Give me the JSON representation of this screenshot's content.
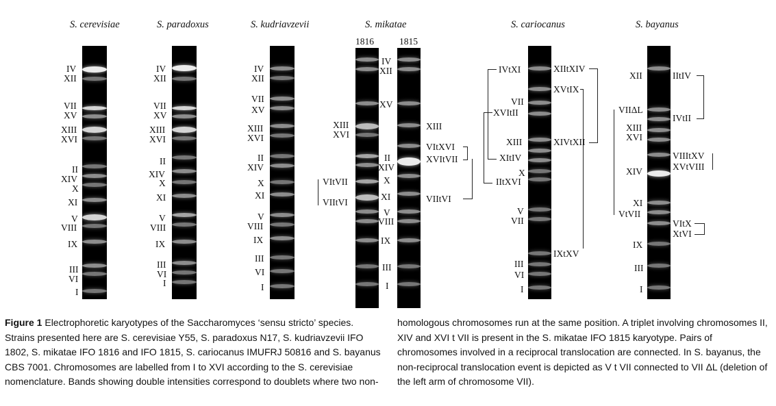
{
  "figure": {
    "species": [
      "S. cerevisiae",
      "S. paradoxus",
      "S. kudriavzevii",
      "S. mikatae",
      "S. cariocanus",
      "S. bayanus"
    ],
    "strains": [
      "1816",
      "1815"
    ],
    "lanes": {
      "cerevisiae": [
        "IV",
        "XII",
        "VII",
        "XV",
        "XIII",
        "XVI",
        "II",
        "XIV",
        "X",
        "XI",
        "V",
        "VIII",
        "IX",
        "III",
        "VI",
        "I"
      ],
      "paradoxus": [
        "IV",
        "XII",
        "VII",
        "XV",
        "XIII",
        "XVI",
        "II",
        "XIV",
        "X",
        "XI",
        "V",
        "VIII",
        "IX",
        "III",
        "VI",
        "I"
      ],
      "kudriavzevii": [
        "IV",
        "XII",
        "VII",
        "XV",
        "XIII",
        "XVI",
        "II",
        "XIV",
        "X",
        "XI",
        "V",
        "VIII",
        "IX",
        "III",
        "VI",
        "I"
      ],
      "mikatae_1816_left": [
        "XIII",
        "XVI",
        "VItVII",
        "VIItVI"
      ],
      "mikatae_middle": [
        "IV",
        "XII",
        "XV",
        "II",
        "XIV",
        "X",
        "XI",
        "V",
        "VIII",
        "IX",
        "III",
        "I"
      ],
      "mikatae_1815_right": [
        "XIII",
        "VItXVI",
        "XVItVII",
        "VIItVI"
      ],
      "cariocanus_left": [
        "IVtXI",
        "VII",
        "XVItII",
        "XIII",
        "XItIV",
        "X",
        "IItXVI",
        "V",
        "VII",
        "III",
        "VI",
        "I"
      ],
      "cariocanus_right": [
        "XIItXIV",
        "XVtIX",
        "XIVtXII",
        "IXtXV"
      ],
      "bayanus_left": [
        "XII",
        "VIIΔL",
        "XIII",
        "XVI",
        "XIV",
        "XI",
        "VtVII",
        "IX",
        "III",
        "I"
      ],
      "bayanus_right": [
        "IItIV",
        "IVtII",
        "VIIItXV",
        "XVtVIII",
        "VItX",
        "XtVI"
      ]
    }
  },
  "caption": {
    "label": "Figure 1",
    "left_text": " Electrophoretic karyotypes of the Saccharomyces ‘sensu stricto’ species. Strains presented here are S. cerevisiae Y55, S. paradoxus N17, S. kudriavzevii IFO 1802, S. mikatae IFO 1816 and IFO 1815, S. cariocanus IMUFRJ 50816 and S. bayanus CBS 7001. Chromosomes are labelled from I to XVI according to the S. cerevisiae nomenclature. Bands showing double intensities correspond to doublets where two non-",
    "right_text": "homologous chromosomes run at the same position. A triplet involving chromosomes II, XIV and XVI t VII is present in the S. mikatae IFO 1815 karyotype. Pairs of chromosomes involved in a reciprocal translocation are connected. In S. bayanus, the non-reciprocal translocation event is depicted as V t VII connected to VII ΔL (deletion of the left arm of chromosome VII)."
  }
}
